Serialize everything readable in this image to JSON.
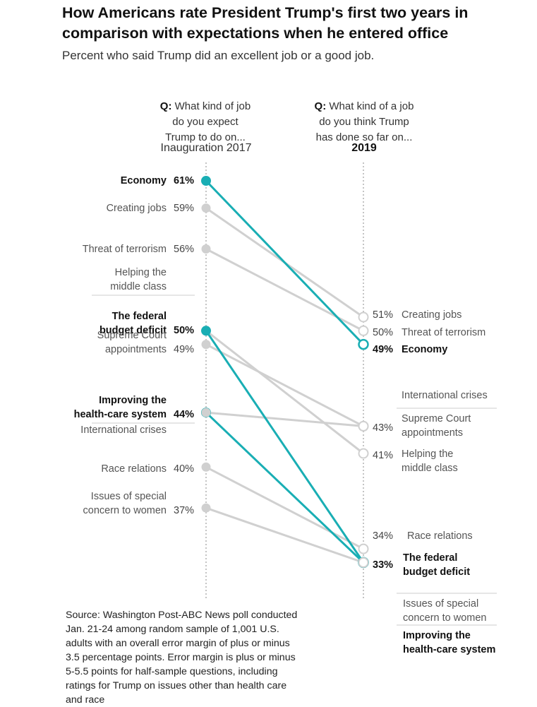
{
  "header": {
    "title": "How Americans rate President Trump's first two years in comparison with expectations when he entered office",
    "subtitle": "Percent who said Trump did an excellent job or a good job."
  },
  "columns": {
    "left_question_prefix": "Q:",
    "left_question": " What kind of job\ndo you expect\nTrump to do on...",
    "right_question_prefix": "Q:",
    "right_question": " What kind of a job\ndo you think Trump\nhas done so far on...",
    "left_label": "Inauguration 2017",
    "right_label": "2019"
  },
  "source": "Source: Washington Post-ABC News poll conducted Jan. 21-24 among random sample of 1,001 U.S. adults with an overall error margin of plus or minus 3.5 percentage points. Error margin is plus or minus 5-5.5 points for half-sample questions, including ratings for Trump on issues other than health care and race",
  "colors": {
    "highlight": "#19aeb4",
    "muted": "#d0d0d0",
    "divider": "#cccccc",
    "axis": "#888888"
  },
  "chart_data": {
    "type": "line",
    "x": [
      "Inauguration 2017",
      "2019"
    ],
    "unit": "%",
    "series": [
      {
        "name": "Economy",
        "lines": [
          "Economy"
        ],
        "values": [
          61,
          49
        ],
        "highlight": true
      },
      {
        "name": "Creating jobs",
        "lines": [
          "Creating jobs"
        ],
        "values": [
          59,
          51
        ],
        "highlight": false
      },
      {
        "name": "Threat of terrorism",
        "lines": [
          "Threat of terrorism"
        ],
        "values": [
          56,
          50
        ],
        "highlight": false
      },
      {
        "name": "Helping the middle class",
        "lines": [
          "Helping the",
          "middle class"
        ],
        "values": [
          50,
          41
        ],
        "highlight": false
      },
      {
        "name": "The federal budget deficit",
        "lines": [
          "The federal",
          "budget deficit"
        ],
        "values": [
          50,
          33
        ],
        "highlight": true
      },
      {
        "name": "Supreme Court appointments",
        "lines": [
          "Supreme Court",
          "appointments"
        ],
        "values": [
          49,
          43
        ],
        "highlight": false
      },
      {
        "name": "Improving the health-care system",
        "lines": [
          "Improving the",
          "health-care system"
        ],
        "values": [
          44,
          33
        ],
        "highlight": true
      },
      {
        "name": "International crises",
        "lines": [
          "International crises"
        ],
        "values": [
          44,
          43
        ],
        "highlight": false
      },
      {
        "name": "Race relations",
        "lines": [
          "Race relations"
        ],
        "values": [
          40,
          34
        ],
        "highlight": false
      },
      {
        "name": "Issues of special concern to women",
        "lines": [
          "Issues of special",
          "concern to women"
        ],
        "values": [
          37,
          33
        ],
        "highlight": false
      }
    ],
    "left_labels": [
      {
        "series": 0,
        "pct": "61%",
        "bold": true
      },
      {
        "series": 1,
        "pct": "59%",
        "bold": false
      },
      {
        "series": 2,
        "pct": "56%",
        "bold": false
      },
      {
        "series": 3,
        "pct": "",
        "bold": false,
        "divider": true
      },
      {
        "series": 4,
        "pct": "50%",
        "bold": true
      },
      {
        "series": 5,
        "pct": "49%",
        "bold": false
      },
      {
        "series": 6,
        "pct": "44%",
        "bold": true,
        "divider": true
      },
      {
        "series": 7,
        "pct": "",
        "bold": false
      },
      {
        "series": 8,
        "pct": "40%",
        "bold": false
      },
      {
        "series": 9,
        "pct": "37%",
        "bold": false
      }
    ],
    "right_labels": [
      {
        "series": 1,
        "pct": "51%",
        "bold": false
      },
      {
        "series": 2,
        "pct": "50%",
        "bold": false
      },
      {
        "series": 0,
        "pct": "49%",
        "bold": true
      },
      {
        "series": 7,
        "pct": "",
        "bold": false,
        "divider": true
      },
      {
        "series": 5,
        "pct": "43%",
        "bold": false
      },
      {
        "series": 3,
        "pct": "41%",
        "bold": false
      },
      {
        "series": 8,
        "pct": "34%",
        "bold": false
      },
      {
        "series": 4,
        "pct": "33%",
        "bold": true,
        "divider": true
      },
      {
        "series": 9,
        "pct": "",
        "bold": false,
        "divider": true
      },
      {
        "series": 6,
        "pct": "",
        "bold": true
      }
    ]
  }
}
